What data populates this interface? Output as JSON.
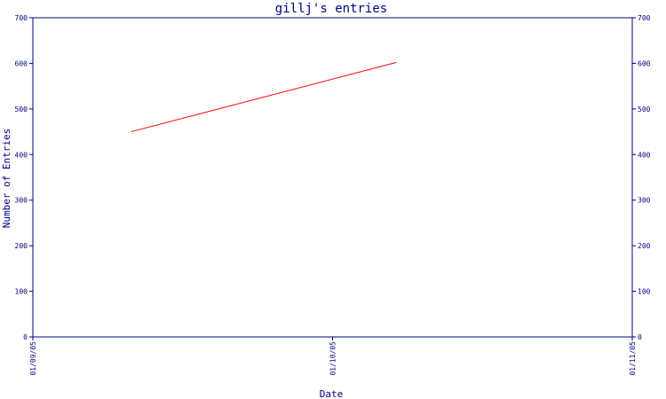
{
  "chart_data": {
    "type": "line",
    "title": "gillj's entries",
    "xlabel": "Date",
    "ylabel": "Number of Entries",
    "x_ticks": [
      "01/09/05",
      "01/10/05",
      "01/11/05"
    ],
    "xlim": [
      "2005-09-01",
      "2005-11-01"
    ],
    "ylim": [
      0,
      700
    ],
    "y_ticks": [
      0,
      100,
      200,
      300,
      400,
      500,
      600,
      700
    ],
    "right_axis_ticks": true,
    "grid": false,
    "series": [
      {
        "color": "#ff0000",
        "points": [
          {
            "x": "2005-09-11",
            "y": 450
          },
          {
            "x": "2005-10-08",
            "y": 602
          }
        ]
      }
    ],
    "colors": {
      "axis": "#000080",
      "text": "#000080",
      "line": "#ff0000",
      "background": "#ffffff"
    }
  }
}
